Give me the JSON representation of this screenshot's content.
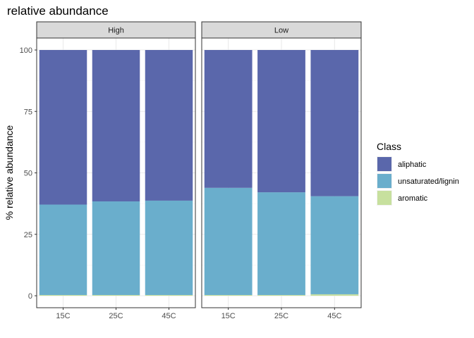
{
  "chart_data": {
    "type": "bar",
    "title": "relative abundance",
    "xlabel": "",
    "ylabel": "% relative abundance",
    "ylim": [
      0,
      100
    ],
    "yticks": [
      "0",
      "25",
      "50",
      "75",
      "100"
    ],
    "ytick_values": [
      0,
      25,
      50,
      75,
      100
    ],
    "categories": [
      "15C",
      "25C",
      "45C"
    ],
    "stacked": true,
    "grid": true,
    "legend_position": "right",
    "legend_title": "Class",
    "facets": [
      {
        "label": "High",
        "series": [
          {
            "name": "aromatic",
            "values": [
              0.3,
              0.3,
              0.3
            ],
            "color": "#c7e09e"
          },
          {
            "name": "unsaturated/lignin",
            "values": [
              36.8,
              38.1,
              38.4
            ],
            "color": "#6aaecc"
          },
          {
            "name": "aliphatic",
            "values": [
              62.9,
              61.6,
              61.3
            ],
            "color": "#5a67ab"
          }
        ]
      },
      {
        "label": "Low",
        "series": [
          {
            "name": "aromatic",
            "values": [
              0.3,
              0.3,
              0.6
            ],
            "color": "#c7e09e"
          },
          {
            "name": "unsaturated/lignin",
            "values": [
              43.6,
              41.8,
              39.9
            ],
            "color": "#6aaecc"
          },
          {
            "name": "aliphatic",
            "values": [
              56.1,
              57.9,
              59.5
            ],
            "color": "#5a67ab"
          }
        ]
      }
    ],
    "legend": [
      {
        "name": "aliphatic",
        "color": "#5a67ab"
      },
      {
        "name": "unsaturated/lignin",
        "color": "#6aaecc"
      },
      {
        "name": "aromatic",
        "color": "#c7e09e"
      }
    ]
  }
}
